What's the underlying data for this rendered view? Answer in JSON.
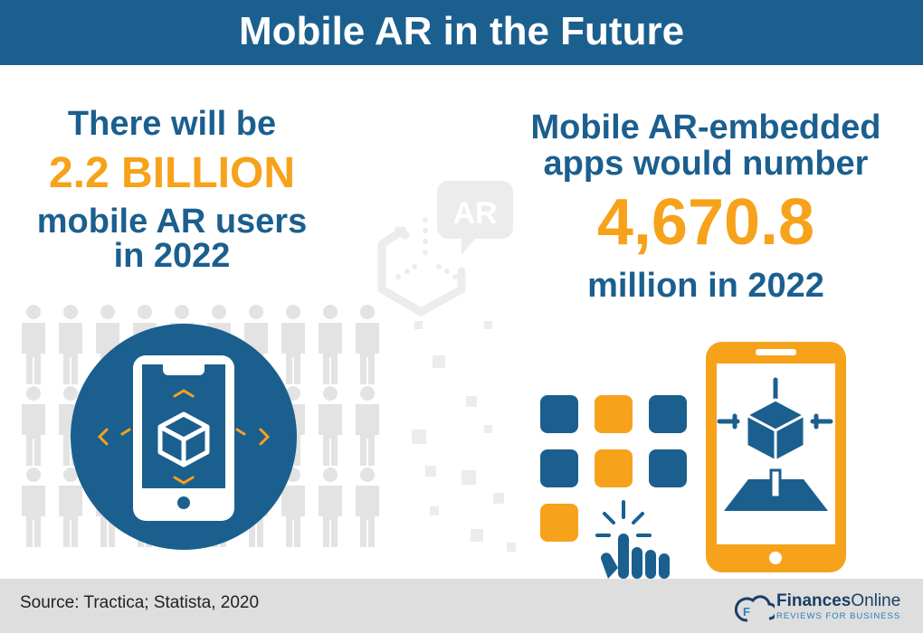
{
  "title": "Mobile AR in the Future",
  "left": {
    "line1": "There will be",
    "highlight": "2.2 BILLION",
    "line3": "mobile AR users",
    "line4": "in 2022"
  },
  "right": {
    "line1": "Mobile AR-embedded",
    "line2": "apps would number",
    "highlight": "4,670.8",
    "line4": "million in 2022"
  },
  "center_icon_label": "AR",
  "footer": {
    "source": "Source: Tractica; Statista, 2020",
    "logo_bold": "Finances",
    "logo_regular": "Online",
    "logo_tagline": "REVIEWS FOR BUSINESS"
  },
  "colors": {
    "blue": "#1b5f8f",
    "orange": "#f7a21b",
    "gray": "#dedede",
    "light_gray": "#e6e6e6"
  }
}
